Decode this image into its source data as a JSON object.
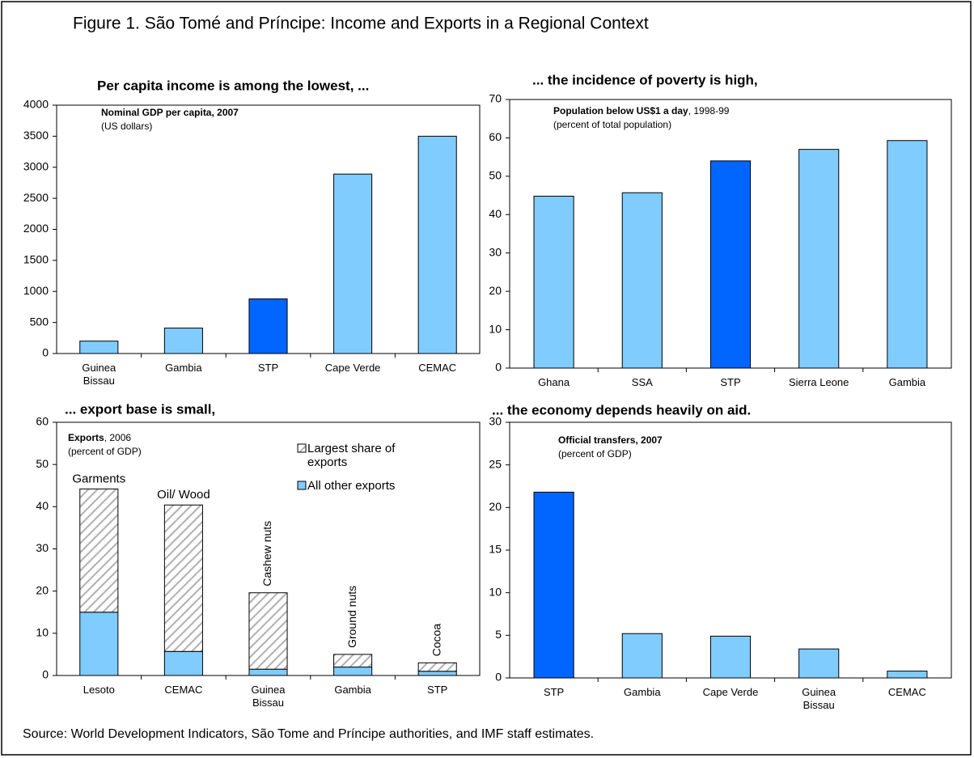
{
  "title": "Figure 1. São Tomé and Príncipe: Income and Exports in a Regional Context",
  "source": "Source: World Development Indicators, São Tome and Príncipe authorities, and IMF staff estimates.",
  "chart_data": [
    {
      "type": "bar",
      "title": "Per capita income is among the lowest, ...",
      "subtitle": "Nominal GDP per capita, 2007",
      "unit_label": "(US dollars)",
      "categories": [
        "Guinea Bissau",
        "Gambia",
        "STP",
        "Cape Verde",
        "CEMAC"
      ],
      "values": [
        200,
        410,
        880,
        2890,
        3500
      ],
      "colors": [
        "#80ccff",
        "#80ccff",
        "#0066ff",
        "#80ccff",
        "#80ccff"
      ],
      "ylim": [
        0,
        4000
      ],
      "yticks": [
        0,
        500,
        1000,
        1500,
        2000,
        2500,
        3000,
        3500,
        4000
      ]
    },
    {
      "type": "bar",
      "title": "... the incidence of poverty is high,",
      "subtitle": "Population below US$1 a day",
      "subtitle_suffix": ", 1998-99",
      "unit_label": "(percent of total population)",
      "categories": [
        "Ghana",
        "SSA",
        "STP",
        "Sierra Leone",
        "Gambia"
      ],
      "values": [
        44.8,
        45.7,
        54,
        57,
        59.3
      ],
      "colors": [
        "#80ccff",
        "#80ccff",
        "#0066ff",
        "#80ccff",
        "#80ccff"
      ],
      "ylim": [
        0,
        70
      ],
      "yticks": [
        0,
        10,
        20,
        30,
        40,
        50,
        60,
        70
      ]
    },
    {
      "type": "stacked_bar",
      "title": "... export base is small,",
      "subtitle": "Exports",
      "subtitle_suffix": ", 2006",
      "unit_label": "(percent of GDP)",
      "categories": [
        "Lesoto",
        "CEMAC",
        "Guinea Bissau",
        "Gambia",
        "STP"
      ],
      "series": [
        {
          "name": "All other exports",
          "color": "#80ccff",
          "values": [
            15,
            5.7,
            1.5,
            2,
            1
          ]
        },
        {
          "name": "Largest share of exports",
          "color": "#c0c0c0",
          "pattern": "hatch",
          "values": [
            29.2,
            34.7,
            18.1,
            3,
            2
          ]
        }
      ],
      "bar_labels": [
        "Garments",
        "Oil/ Wood",
        "Cashew nuts",
        "Ground nuts",
        "Cocoa"
      ],
      "rotated_labels": [
        false,
        false,
        true,
        true,
        true
      ],
      "legend": "upper right",
      "ylim": [
        0,
        60
      ],
      "yticks": [
        0,
        10,
        20,
        30,
        40,
        50,
        60
      ]
    },
    {
      "type": "bar",
      "title": "... the economy depends heavily on aid.",
      "subtitle": "Official transfers, 2007",
      "unit_label": "(percent of GDP)",
      "categories": [
        "STP",
        "Gambia",
        "Cape Verde",
        "Guinea Bissau",
        "CEMAC"
      ],
      "values": [
        21.8,
        5.2,
        4.9,
        3.4,
        0.8
      ],
      "colors": [
        "#0066ff",
        "#80ccff",
        "#80ccff",
        "#80ccff",
        "#80ccff"
      ],
      "ylim": [
        0,
        30
      ],
      "yticks": [
        0,
        5,
        10,
        15,
        20,
        25,
        30
      ]
    }
  ]
}
